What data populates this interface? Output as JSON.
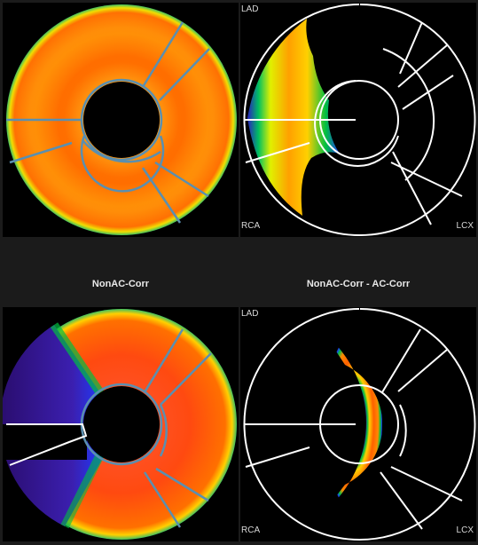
{
  "captions": {
    "left": "NonAC-Corr",
    "right": "NonAC-Corr - AC-Corr"
  },
  "territory_labels": {
    "lad": "LAD",
    "rca": "RCA",
    "lcx": "LCX"
  },
  "colors": {
    "background": "#1b1b1b",
    "panel_bg": "#000000",
    "segment_lines_colored": "#5a8fb0",
    "segment_lines_outline": "#ffffff",
    "palette": [
      "#2a0d6e",
      "#3b1fb0",
      "#1e3cff",
      "#00c040",
      "#d8f000",
      "#ffd000",
      "#ff9500",
      "#ff4000"
    ]
  },
  "panels": [
    {
      "name": "nonac-corr-polar-map",
      "style": "uniform-orange"
    },
    {
      "name": "ac-difference-polar-map",
      "style": "septal-edge-difference",
      "labels": [
        "lad",
        "rca",
        "lcx"
      ]
    },
    {
      "name": "nonac-corr-polar-map-2",
      "style": "septal-defect"
    },
    {
      "name": "ac-difference-polar-map-2",
      "style": "lateral-difference",
      "labels": [
        "lad",
        "rca",
        "lcx"
      ]
    }
  ]
}
